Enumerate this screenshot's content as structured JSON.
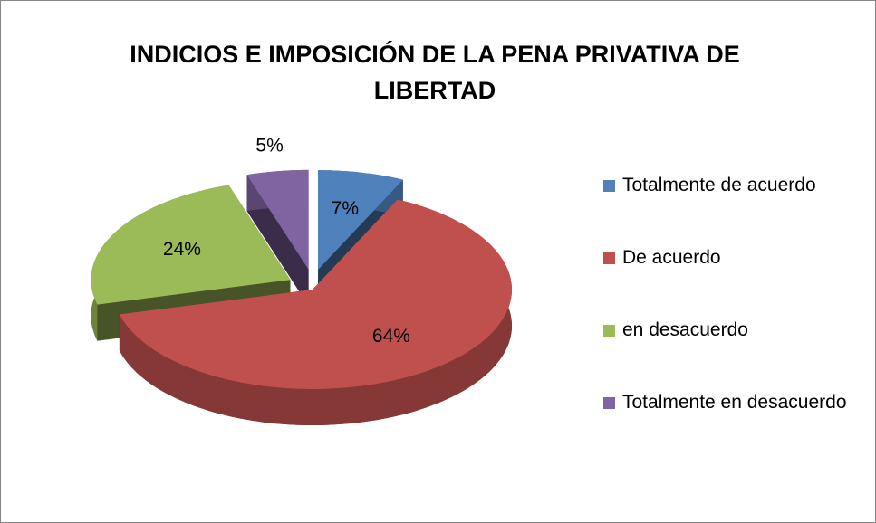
{
  "chart_data": {
    "type": "pie3d",
    "title": "INDICIOS E IMPOSICIÓN DE LA PENA PRIVATIVA DE LIBERTAD",
    "categories": [
      "Totalmente de acuerdo",
      "De acuerdo",
      "en desacuerdo",
      "Totalmente en desacuerdo"
    ],
    "values": [
      7,
      64,
      24,
      5
    ],
    "value_labels": [
      "7%",
      "64%",
      "24%",
      "5%"
    ],
    "colors": [
      "#4f81bd",
      "#c0504d",
      "#9bbb59",
      "#8064a2"
    ],
    "exploded": [
      true,
      false,
      true,
      true
    ],
    "legend": "right"
  }
}
